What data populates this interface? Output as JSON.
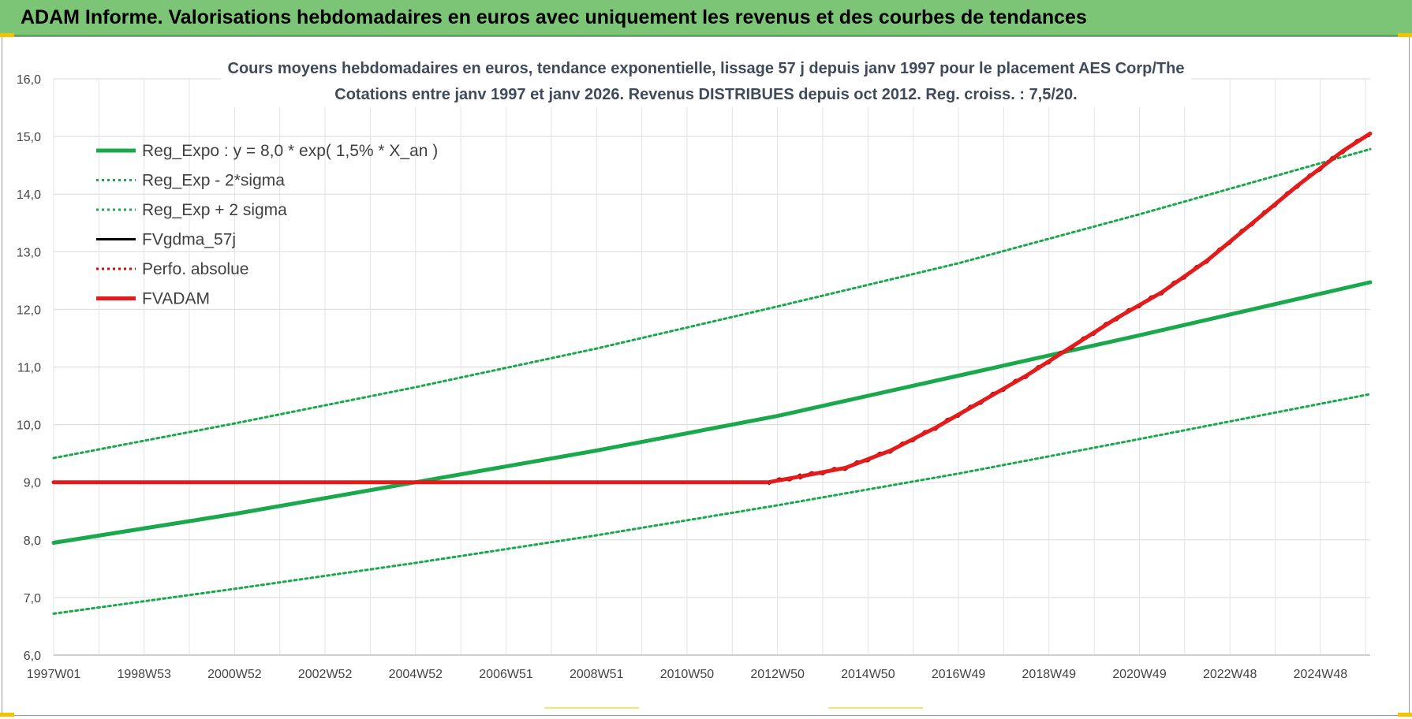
{
  "banner": {
    "title": "ADAM Informe. Valorisations hebdomadaires en euros avec uniquement les revenus et des courbes de tendances"
  },
  "chart_data": {
    "type": "line",
    "title_line1": "Cours moyens hebdomadaires en euros, tendance exponentielle, lissage 57 j depuis janv 1997  pour le placement AES Corp/The",
    "title_line2": "Cotations entre janv 1997 et janv 2026. Revenus DISTRIBUES depuis oct 2012. Reg. croiss. : 7,5/20.",
    "ylim": [
      6.0,
      16.0
    ],
    "yticks": [
      "6,0",
      "7,0",
      "8,0",
      "9,0",
      "10,0",
      "11,0",
      "12,0",
      "13,0",
      "14,0",
      "15,0",
      "16,0"
    ],
    "xlim": [
      1997.0,
      2026.1
    ],
    "xticks": [
      {
        "label": "1997W01",
        "x": 1997.0
      },
      {
        "label": "1998W53",
        "x": 1999.0
      },
      {
        "label": "2000W52",
        "x": 2001.0
      },
      {
        "label": "2002W52",
        "x": 2003.0
      },
      {
        "label": "2004W52",
        "x": 2005.0
      },
      {
        "label": "2006W51",
        "x": 2007.0
      },
      {
        "label": "2008W51",
        "x": 2009.0
      },
      {
        "label": "2010W50",
        "x": 2011.0
      },
      {
        "label": "2012W50",
        "x": 2013.0
      },
      {
        "label": "2014W50",
        "x": 2015.0
      },
      {
        "label": "2016W49",
        "x": 2017.0
      },
      {
        "label": "2018W49",
        "x": 2019.0
      },
      {
        "label": "2020W49",
        "x": 2021.0
      },
      {
        "label": "2022W48",
        "x": 2023.0
      },
      {
        "label": "2024W48",
        "x": 2025.0
      }
    ],
    "grid": true,
    "legend_position": "top-left",
    "series": [
      {
        "name": "Reg_Expo : y = 8,0 * exp( 1,5% *  X_an )",
        "color": "#1aa84c",
        "style": "solid-thick",
        "x": [
          1997.0,
          2001.0,
          2005.0,
          2009.0,
          2013.0,
          2017.0,
          2021.0,
          2026.1
        ],
        "y": [
          7.95,
          8.45,
          9.0,
          9.55,
          10.15,
          10.85,
          11.55,
          12.47
        ]
      },
      {
        "name": "Reg_Exp - 2*sigma",
        "color": "#1aa84c",
        "style": "dotted",
        "x": [
          1997.0,
          2001.0,
          2005.0,
          2009.0,
          2013.0,
          2017.0,
          2021.0,
          2026.1
        ],
        "y": [
          6.72,
          7.15,
          7.6,
          8.08,
          8.6,
          9.15,
          9.75,
          10.53
        ]
      },
      {
        "name": "Reg_Exp + 2 sigma",
        "color": "#1aa84c",
        "style": "dotted",
        "x": [
          1997.0,
          2001.0,
          2005.0,
          2009.0,
          2013.0,
          2017.0,
          2021.0,
          2026.1
        ],
        "y": [
          9.42,
          10.02,
          10.65,
          11.32,
          12.05,
          12.8,
          13.65,
          14.78
        ]
      },
      {
        "name": "FVgdma_57j",
        "color": "#000000",
        "style": "solid",
        "x": [],
        "y": []
      },
      {
        "name": "Perfo. absolue",
        "color": "#e00000",
        "style": "dotted",
        "x": [],
        "y": []
      },
      {
        "name": "FVADAM",
        "color": "#e31b1b",
        "style": "solid-thick",
        "x": [
          1997.0,
          2012.8,
          2013.5,
          2014.5,
          2015.5,
          2016.5,
          2017.5,
          2018.5,
          2019.5,
          2020.5,
          2021.5,
          2022.5,
          2023.5,
          2024.5,
          2025.5,
          2026.1
        ],
        "y": [
          9.0,
          9.0,
          9.1,
          9.25,
          9.55,
          9.95,
          10.4,
          10.85,
          11.35,
          11.85,
          12.3,
          12.85,
          13.5,
          14.15,
          14.75,
          15.05
        ]
      }
    ]
  }
}
